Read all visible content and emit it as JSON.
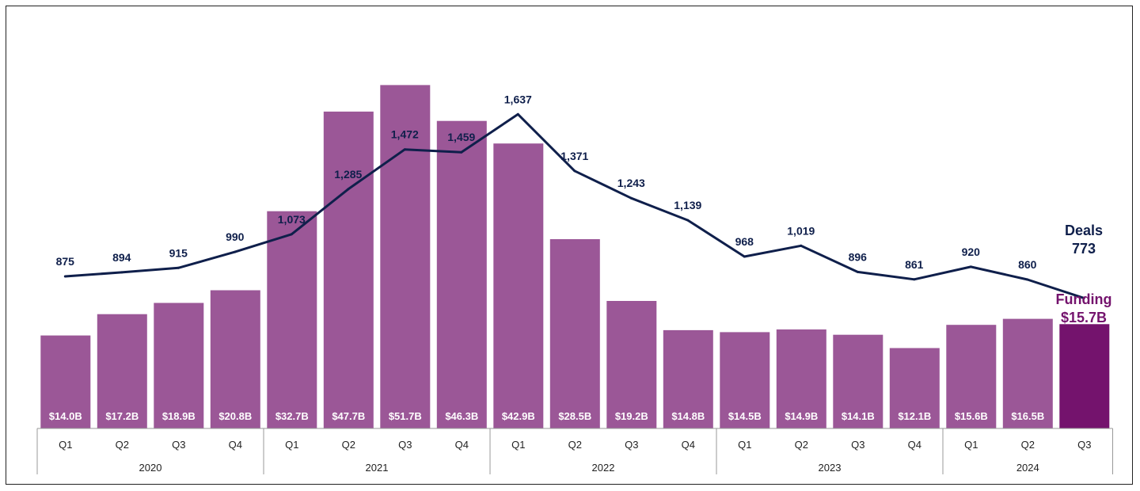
{
  "chart_data": {
    "type": "bar",
    "title": "",
    "xlabel": "",
    "ylabel": "",
    "years": [
      "2020",
      "2021",
      "2022",
      "2023",
      "2024"
    ],
    "categories": [
      {
        "year": "2020",
        "quarter": "Q1"
      },
      {
        "year": "2020",
        "quarter": "Q2"
      },
      {
        "year": "2020",
        "quarter": "Q3"
      },
      {
        "year": "2020",
        "quarter": "Q4"
      },
      {
        "year": "2021",
        "quarter": "Q1"
      },
      {
        "year": "2021",
        "quarter": "Q2"
      },
      {
        "year": "2021",
        "quarter": "Q3"
      },
      {
        "year": "2021",
        "quarter": "Q4"
      },
      {
        "year": "2022",
        "quarter": "Q1"
      },
      {
        "year": "2022",
        "quarter": "Q2"
      },
      {
        "year": "2022",
        "quarter": "Q3"
      },
      {
        "year": "2022",
        "quarter": "Q4"
      },
      {
        "year": "2023",
        "quarter": "Q1"
      },
      {
        "year": "2023",
        "quarter": "Q2"
      },
      {
        "year": "2023",
        "quarter": "Q3"
      },
      {
        "year": "2023",
        "quarter": "Q4"
      },
      {
        "year": "2024",
        "quarter": "Q1"
      },
      {
        "year": "2024",
        "quarter": "Q2"
      },
      {
        "year": "2024",
        "quarter": "Q3"
      }
    ],
    "series": [
      {
        "name": "Funding",
        "kind": "bar",
        "unit": "$B",
        "values": [
          14.0,
          17.2,
          18.9,
          20.8,
          32.7,
          47.7,
          51.7,
          46.3,
          42.9,
          28.5,
          19.2,
          14.8,
          14.5,
          14.9,
          14.1,
          12.1,
          15.6,
          16.5,
          15.7
        ],
        "labels": [
          "$14.0B",
          "$17.2B",
          "$18.9B",
          "$20.8B",
          "$32.7B",
          "$47.7B",
          "$51.7B",
          "$46.3B",
          "$42.9B",
          "$28.5B",
          "$19.2B",
          "$14.8B",
          "$14.5B",
          "$14.9B",
          "$14.1B",
          "$12.1B",
          "$15.6B",
          "$16.5B",
          ""
        ],
        "color": "#9b5797",
        "highlight_color": "#74136d"
      },
      {
        "name": "Deals",
        "kind": "line",
        "values": [
          875,
          894,
          915,
          990,
          1073,
          1285,
          1472,
          1459,
          1637,
          1371,
          1243,
          1139,
          968,
          1019,
          896,
          861,
          920,
          860,
          773
        ],
        "labels": [
          "875",
          "894",
          "915",
          "990",
          "1,073",
          "1,285",
          "1,472",
          "1,459",
          "1,637",
          "1,371",
          "1,243",
          "1,139",
          "968",
          "1,019",
          "896",
          "861",
          "920",
          "860",
          ""
        ],
        "color": "#0f1f4b"
      }
    ],
    "callouts": {
      "deals_name": "Deals",
      "deals_value": "773",
      "funding_name": "Funding",
      "funding_value": "$15.7B",
      "deals_color": "#0f1f4b",
      "funding_color": "#74136d"
    },
    "ylim_funding": [
      0,
      62
    ],
    "ylim_deals": [
      0,
      2100
    ],
    "grid": false,
    "legend": "none"
  }
}
